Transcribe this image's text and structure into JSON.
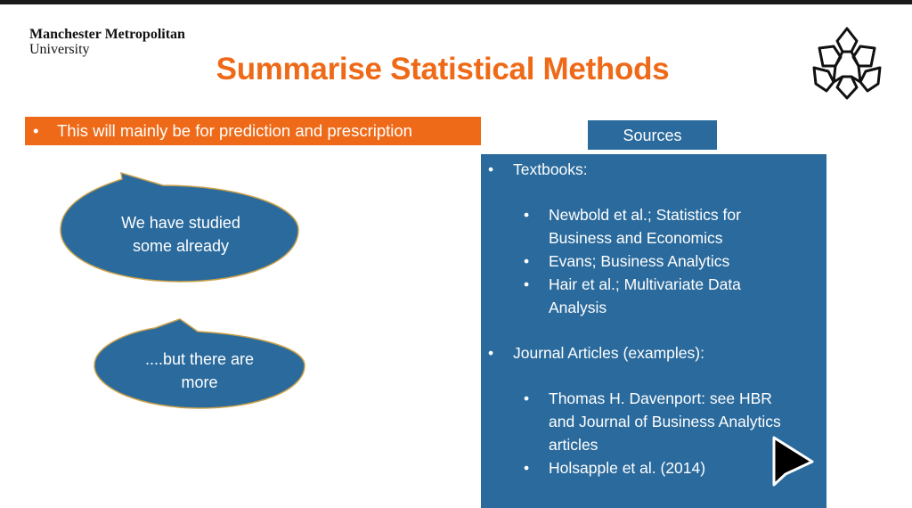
{
  "slide": {
    "university_line1": "Manchester Metropolitan",
    "university_line2": "University",
    "title": "Summarise Statistical Methods",
    "banner_bullet": "•",
    "banner_text": "This will mainly be for prediction and prescription",
    "bubble1_line1": "We have studied",
    "bubble1_line2": "some already",
    "bubble2_line1": "....but there are",
    "bubble2_line2": "more",
    "sources_label": "Sources",
    "sources": {
      "bullet": "•",
      "textbooks_heading": "Textbooks:",
      "textbooks": [
        [
          "Newbold et al.; Statistics for",
          "Business and Economics"
        ],
        [
          "Evans; Business Analytics"
        ],
        [
          "Hair et al.; Multivariate Data",
          "Analysis"
        ]
      ],
      "journals_heading": "Journal Articles (examples):",
      "journals": [
        [
          "Thomas H. Davenport: see HBR",
          "and Journal of Business Analytics",
          "articles"
        ],
        [
          "Holsapple et al. (2014)"
        ]
      ]
    }
  },
  "colors": {
    "orange": "#ee6a18",
    "blue": "#2a6a9c",
    "bubble_outline": "#c9a14a"
  },
  "icons": {
    "crest": "mmu-crest-icon",
    "cursor": "mouse-pointer-icon"
  }
}
